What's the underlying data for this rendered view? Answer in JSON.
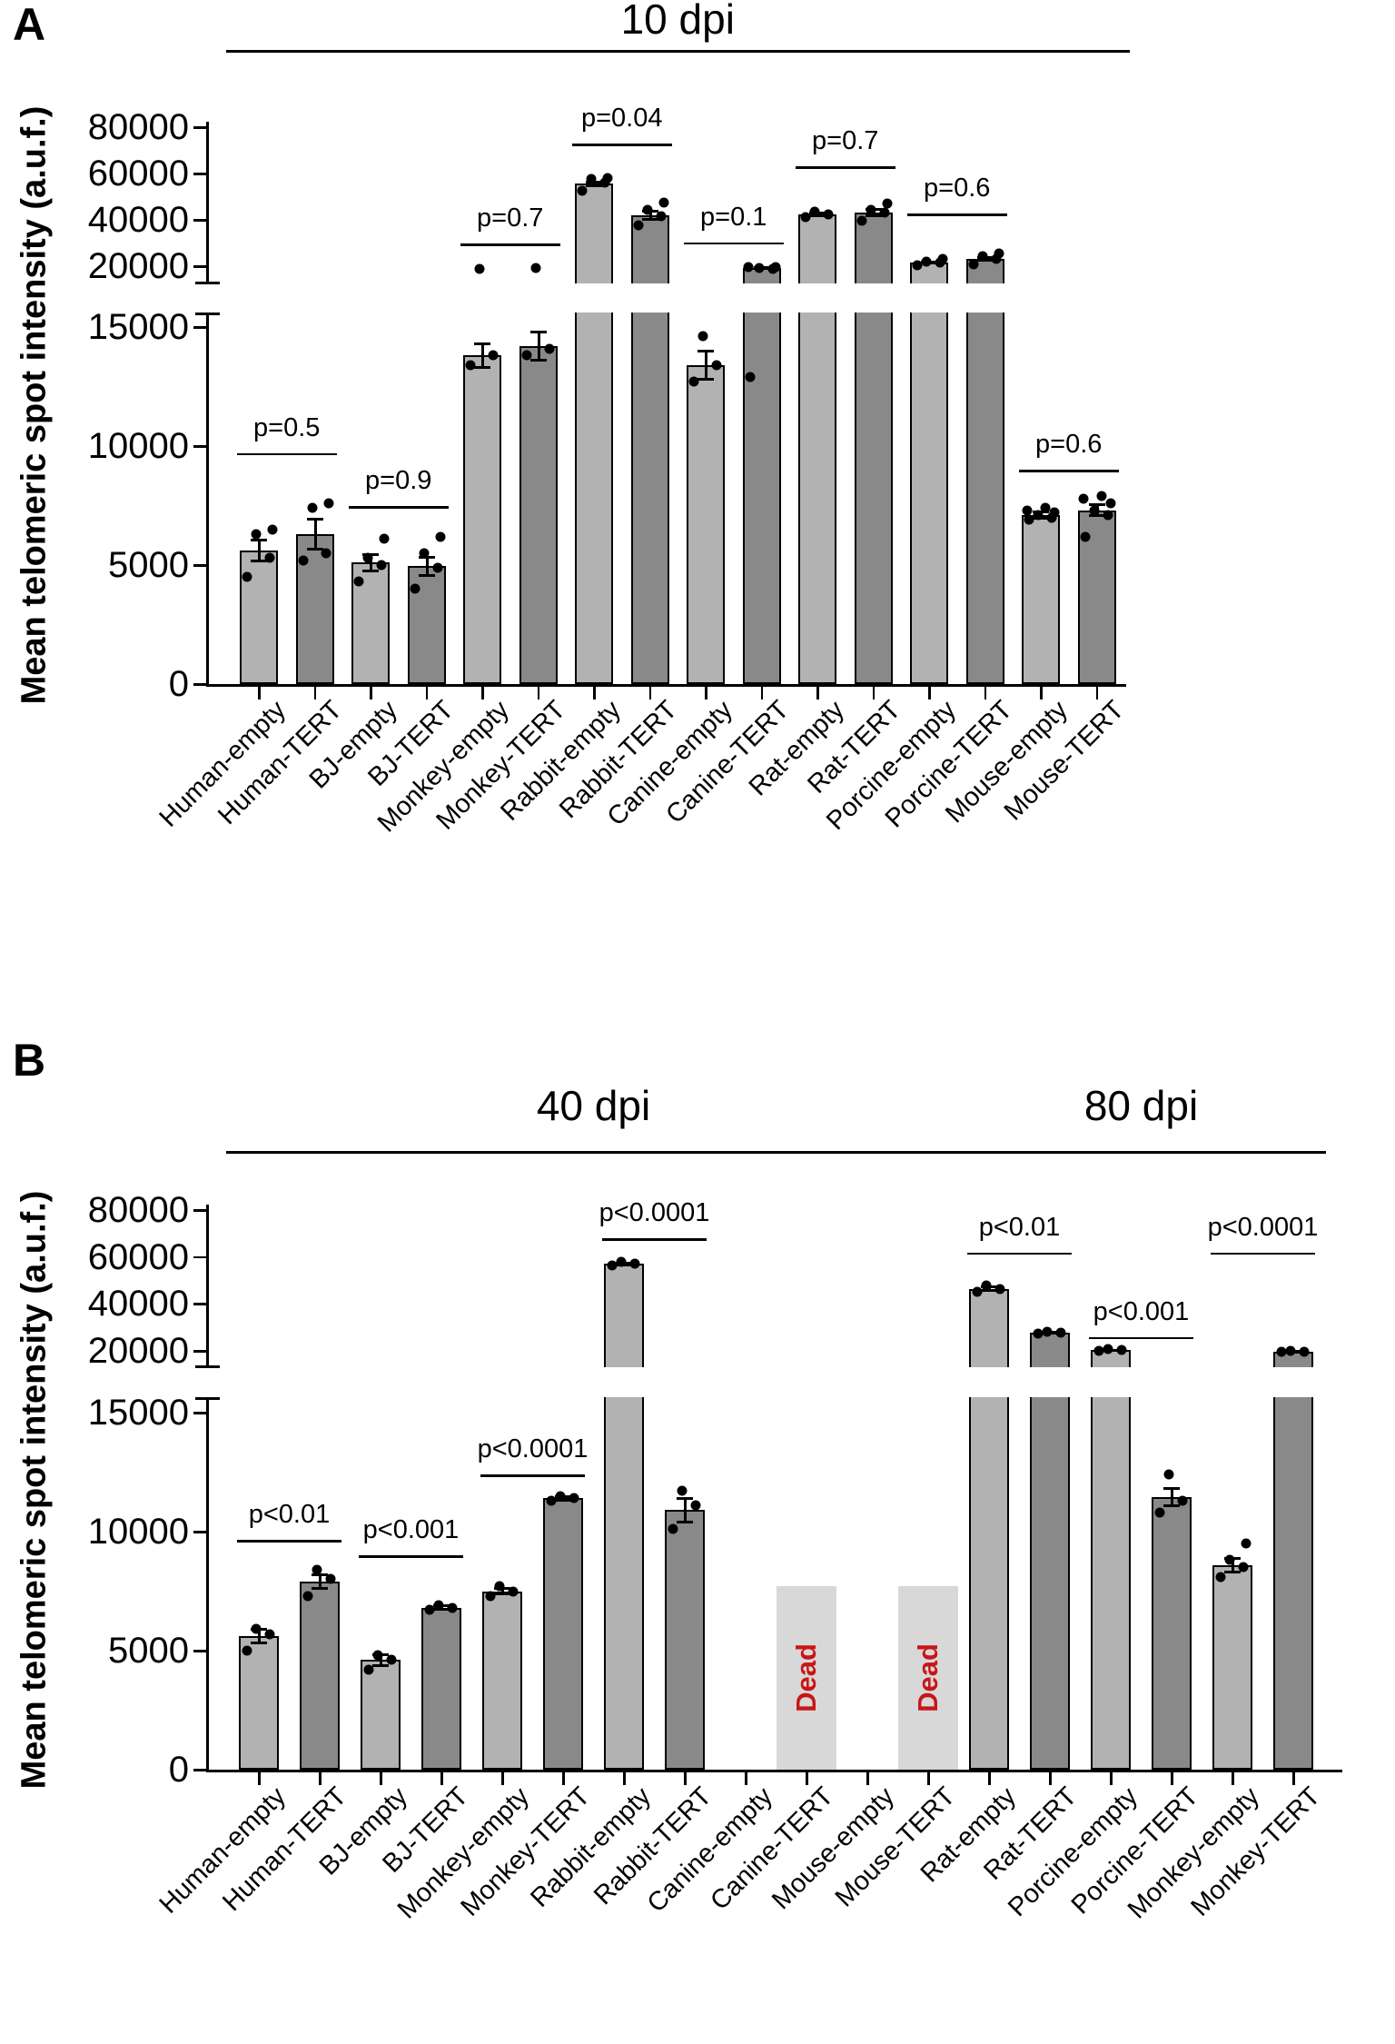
{
  "figure": {
    "panel_a_letter": "A",
    "panel_b_letter": "B",
    "dead_text": "Dead",
    "colors": {
      "empty_bar": "#b2b2b2",
      "tert_bar": "#898989",
      "dead_bar_fill": "#d8d8d8",
      "dead_text_color": "#c81616",
      "axis": "#000000"
    }
  },
  "chart_data": [
    {
      "type": "bar",
      "panel": "A",
      "ylabel": "Mean telomeric spot intensity (a.u.f.)",
      "group_headers": [
        {
          "label": "10 dpi",
          "from": 0,
          "to": 15
        }
      ],
      "axis": {
        "lower_ticks": [
          0,
          5000,
          10000,
          15000
        ],
        "upper_ticks": [
          20000,
          40000,
          60000,
          80000
        ],
        "break_between": [
          15000,
          20000
        ],
        "grid": false
      },
      "bars": [
        {
          "label": "Human-empty",
          "group": "empty",
          "value": 5600,
          "err": 450,
          "dots": [
            4500,
            5300,
            6300,
            6500
          ]
        },
        {
          "label": "Human-TERT",
          "group": "tert",
          "value": 6300,
          "err": 650,
          "dots": [
            5200,
            5500,
            7400,
            7600
          ]
        },
        {
          "label": "BJ-empty",
          "group": "empty",
          "value": 5100,
          "err": 350,
          "dots": [
            4300,
            5000,
            5300,
            6100
          ]
        },
        {
          "label": "BJ-TERT",
          "group": "tert",
          "value": 4950,
          "err": 400,
          "dots": [
            4000,
            4900,
            5500,
            6200
          ]
        },
        {
          "label": "Monkey-empty",
          "group": "empty",
          "value": 13800,
          "err": 500,
          "dots": [
            13400,
            13800,
            19000
          ]
        },
        {
          "label": "Monkey-TERT",
          "group": "tert",
          "value": 14200,
          "err": 600,
          "dots": [
            13800,
            14100,
            19300
          ]
        },
        {
          "label": "Rabbit-empty",
          "group": "empty",
          "value": 55500,
          "err": 900,
          "dots": [
            52500,
            56000,
            57500,
            58000
          ]
        },
        {
          "label": "Rabbit-TERT",
          "group": "tert",
          "value": 42000,
          "err": 2000,
          "dots": [
            37500,
            41500,
            44500,
            47500
          ]
        },
        {
          "label": "Canine-empty",
          "group": "empty",
          "value": 13400,
          "err": 600,
          "dots": [
            12700,
            13400,
            14600
          ]
        },
        {
          "label": "Canine-TERT",
          "group": "tert",
          "value": 19300,
          "err": 250,
          "dots": [
            12900,
            18900,
            19200,
            19500,
            19700
          ]
        },
        {
          "label": "Rat-empty",
          "group": "empty",
          "value": 42300,
          "err": 700,
          "dots": [
            41000,
            42500,
            43500
          ]
        },
        {
          "label": "Rat-TERT",
          "group": "tert",
          "value": 43000,
          "err": 1600,
          "dots": [
            39500,
            43000,
            44500,
            47000
          ]
        },
        {
          "label": "Porcine-empty",
          "group": "empty",
          "value": 21500,
          "err": 400,
          "dots": [
            20500,
            21500,
            22000,
            23000
          ]
        },
        {
          "label": "Porcine-TERT",
          "group": "tert",
          "value": 23000,
          "err": 800,
          "dots": [
            20800,
            23000,
            24500,
            25500
          ]
        },
        {
          "label": "Mouse-empty",
          "group": "empty",
          "value": 7100,
          "err": 150,
          "dots": [
            6900,
            7000,
            7100,
            7200,
            7300,
            7400
          ]
        },
        {
          "label": "Mouse-TERT",
          "group": "tert",
          "value": 7300,
          "err": 250,
          "dots": [
            6200,
            7100,
            7300,
            7600,
            7800,
            7900
          ]
        }
      ],
      "pvalues": [
        {
          "text": "p=0.5",
          "from": 0,
          "to": 1,
          "level": 9700
        },
        {
          "text": "p=0.9",
          "from": 2,
          "to": 3,
          "level": 7480
        },
        {
          "text": "p=0.7",
          "from": 4,
          "to": 5,
          "level": 29800
        },
        {
          "text": "p=0.04",
          "from": 6,
          "to": 7,
          "level": 72900
        },
        {
          "text": "p=0.1",
          "from": 8,
          "to": 9,
          "level": 30200
        },
        {
          "text": "p=0.7",
          "from": 10,
          "to": 11,
          "level": 63000
        },
        {
          "text": "p=0.6",
          "from": 12,
          "to": 13,
          "level": 42700
        },
        {
          "text": "p=0.6",
          "from": 14,
          "to": 15,
          "level": 9000
        }
      ]
    },
    {
      "type": "bar",
      "panel": "B",
      "ylabel": "Mean telomeric spot intensity (a.u.f.)",
      "group_headers": [
        {
          "label": "40 dpi",
          "from": 0,
          "to": 11
        },
        {
          "label": "80 dpi",
          "from": 12,
          "to": 17
        }
      ],
      "axis": {
        "lower_ticks": [
          0,
          5000,
          10000,
          15000
        ],
        "upper_ticks": [
          20000,
          40000,
          60000,
          80000
        ],
        "break_between": [
          15000,
          20000
        ],
        "grid": false
      },
      "bars": [
        {
          "label": "Human-empty",
          "group": "empty",
          "value": 5600,
          "err": 300,
          "dots": [
            5000,
            5700,
            5900
          ]
        },
        {
          "label": "Human-TERT",
          "group": "tert",
          "value": 7900,
          "err": 300,
          "dots": [
            7300,
            8000,
            8400
          ]
        },
        {
          "label": "BJ-empty",
          "group": "empty",
          "value": 4600,
          "err": 250,
          "dots": [
            4200,
            4600,
            4800
          ]
        },
        {
          "label": "BJ-TERT",
          "group": "tert",
          "value": 6800,
          "err": 100,
          "dots": [
            6700,
            6800,
            6900
          ]
        },
        {
          "label": "Monkey-empty",
          "group": "empty",
          "value": 7500,
          "err": 150,
          "dots": [
            7300,
            7500,
            7700
          ]
        },
        {
          "label": "Monkey-TERT",
          "group": "tert",
          "value": 11400,
          "err": 100,
          "dots": [
            11300,
            11400,
            11500
          ]
        },
        {
          "label": "Rabbit-empty",
          "group": "empty",
          "value": 57000,
          "err": 700,
          "dots": [
            56200,
            57200,
            57800
          ]
        },
        {
          "label": "Rabbit-TERT",
          "group": "tert",
          "value": 10900,
          "err": 500,
          "dots": [
            10100,
            11100,
            11700
          ]
        },
        {
          "label": "Canine-empty",
          "group": "empty",
          "value": null
        },
        {
          "label": "Canine-TERT",
          "group": "tert",
          "value": null,
          "dead": true,
          "dead_height": 7700
        },
        {
          "label": "Mouse-empty",
          "group": "empty",
          "value": null
        },
        {
          "label": "Mouse-TERT",
          "group": "tert",
          "value": null,
          "dead": true,
          "dead_height": 7700
        },
        {
          "label": "Rat-empty",
          "group": "empty",
          "value": 46500,
          "err": 1100,
          "dots": [
            45000,
            46500,
            48000
          ]
        },
        {
          "label": "Rat-TERT",
          "group": "tert",
          "value": 27700,
          "err": 300,
          "dots": [
            27200,
            27700,
            28200
          ]
        },
        {
          "label": "Porcine-empty",
          "group": "empty",
          "value": 20300,
          "err": 250,
          "dots": [
            19900,
            20300,
            20700
          ]
        },
        {
          "label": "Porcine-TERT",
          "group": "tert",
          "value": 11450,
          "err": 400,
          "dots": [
            10800,
            11300,
            12400
          ]
        },
        {
          "label": "Monkey-empty",
          "group": "empty",
          "value": 8600,
          "err": 300,
          "dots": [
            8100,
            8500,
            8800,
            9500
          ]
        },
        {
          "label": "Monkey-TERT",
          "group": "tert",
          "value": 19800,
          "err": 200,
          "dots": [
            19500,
            19800,
            20100
          ]
        }
      ],
      "pvalues": [
        {
          "text": "p<0.01",
          "from": 0,
          "to": 1,
          "level": 9650
        },
        {
          "text": "p<0.001",
          "from": 2,
          "to": 3,
          "level": 9000
        },
        {
          "text": "p<0.0001",
          "from": 4,
          "to": 5,
          "level": 12400
        },
        {
          "text": "p<0.0001",
          "from": 6,
          "to": 7,
          "level": 68000
        },
        {
          "text": "p<0.01",
          "from": 12,
          "to": 13,
          "level": 62000
        },
        {
          "text": "p<0.001",
          "from": 14,
          "to": 15,
          "level": 26000
        },
        {
          "text": "p<0.0001",
          "from": 16,
          "to": 17,
          "level": 62000
        }
      ]
    }
  ]
}
